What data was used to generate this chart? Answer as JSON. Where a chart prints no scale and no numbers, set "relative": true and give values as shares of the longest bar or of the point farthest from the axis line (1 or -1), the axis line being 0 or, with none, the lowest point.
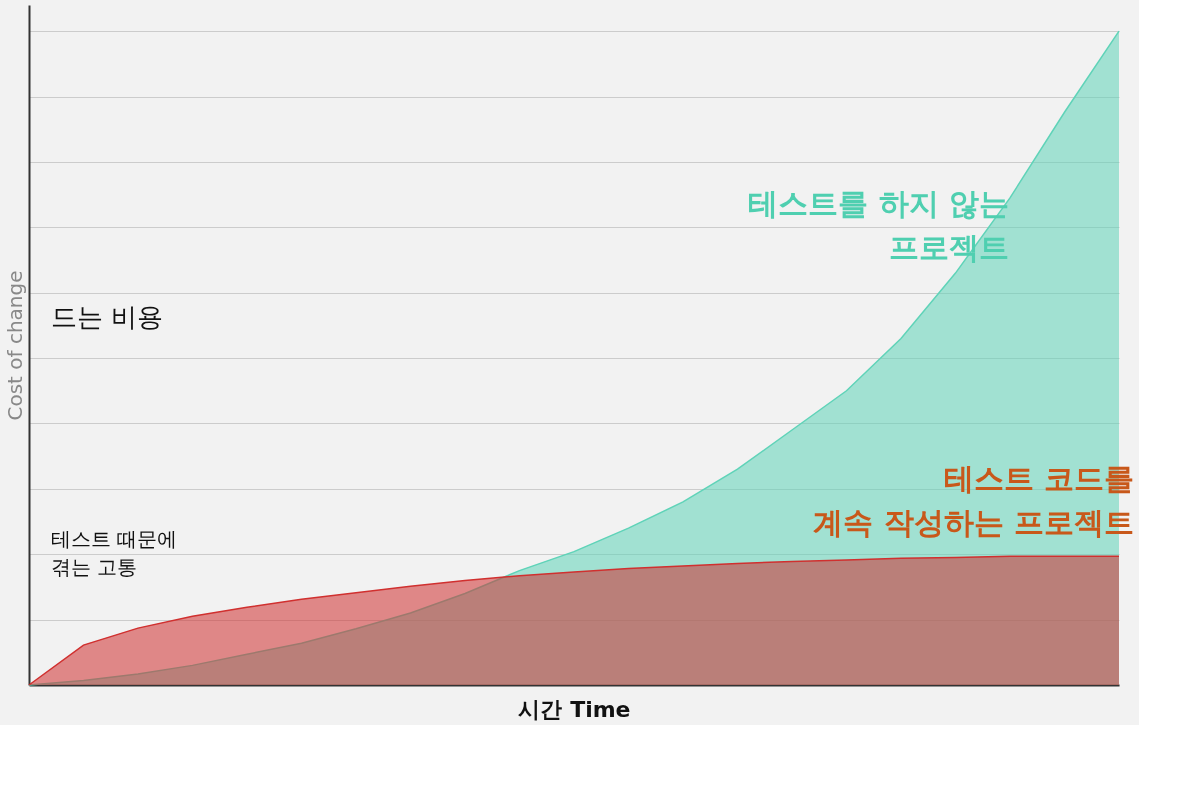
{
  "chart_data": {
    "type": "area",
    "relative": true,
    "xlabel": "시간  Time",
    "ylabel": "Cost of change",
    "grid": "y",
    "legend": false,
    "annotations": [
      "드는 비용",
      "테스트 때문에 겪는 고통"
    ],
    "categories": [
      null,
      null,
      null,
      null,
      null,
      null,
      null,
      null,
      null,
      null,
      null,
      null,
      null,
      null,
      null,
      null,
      null,
      null,
      null,
      null,
      null
    ],
    "series": [
      {
        "name": "테스트를 하지 않는 프로젝트",
        "color": "#5fd3b8",
        "values": [
          0,
          0.007,
          0.017,
          0.03,
          0.047,
          0.064,
          0.086,
          0.11,
          0.14,
          0.175,
          0.204,
          0.24,
          0.28,
          0.33,
          0.39,
          0.45,
          0.53,
          0.63,
          0.745,
          0.876,
          1.0
        ]
      },
      {
        "name": "테스트 코드를 계속 작성하는 프로젝트",
        "color": "#d0302f",
        "values": [
          0,
          0.061,
          0.087,
          0.105,
          0.119,
          0.131,
          0.141,
          0.151,
          0.16,
          0.167,
          0.173,
          0.178,
          0.182,
          0.186,
          0.189,
          0.191,
          0.194,
          0.195,
          0.197,
          0.197,
          0.197
        ]
      }
    ]
  }
}
